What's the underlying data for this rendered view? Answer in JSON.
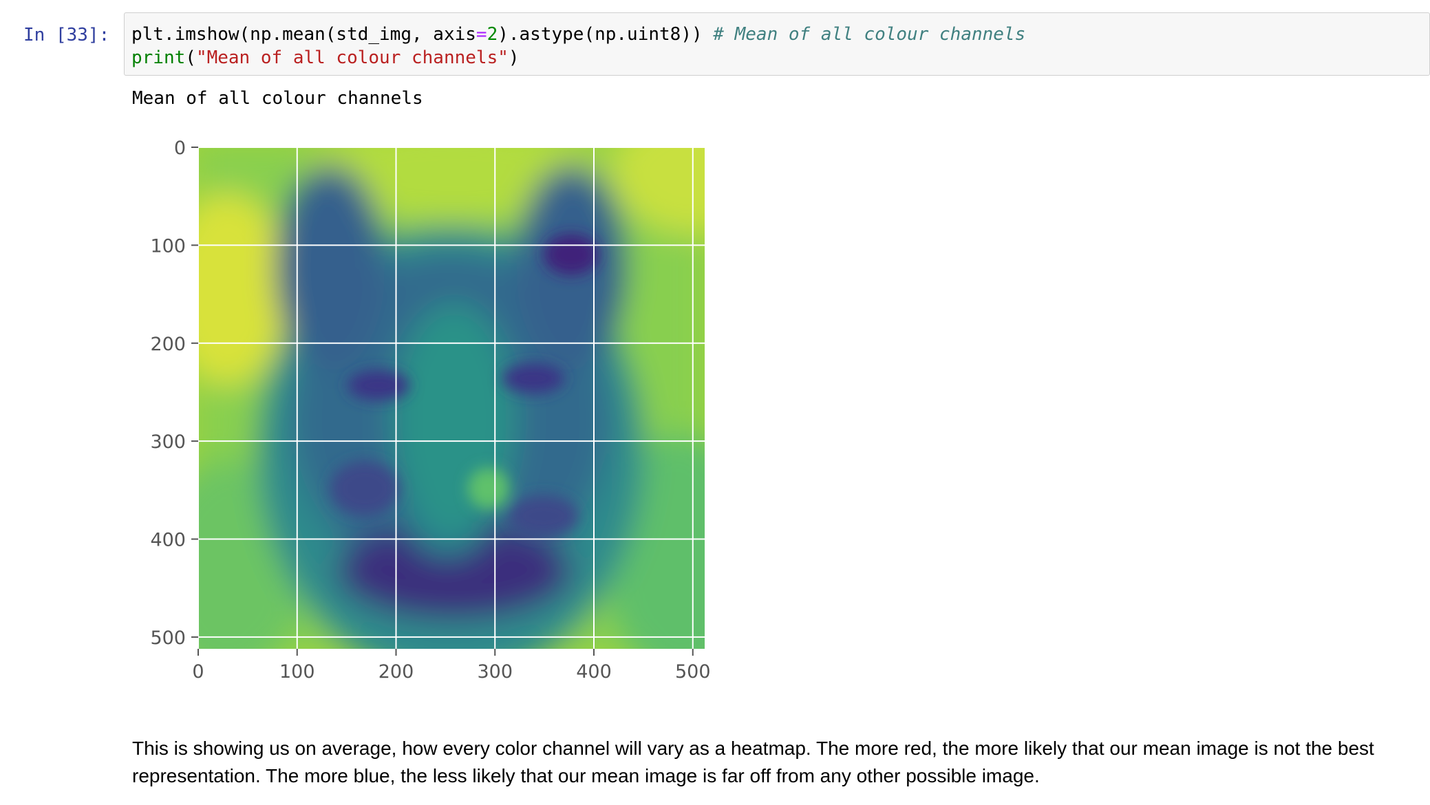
{
  "cell": {
    "prompt": "In [33]:",
    "code": {
      "line1": {
        "prefix": "plt.imshow(np.mean(std_img, axis",
        "equals": "=",
        "number": "2",
        "suffix": ").astype(np.uint8)) ",
        "comment": "# Mean of all colour channels"
      },
      "line2": {
        "builtin": "print",
        "open": "(",
        "string": "\"Mean of all colour channels\"",
        "close": ")"
      }
    },
    "stdout": "Mean of all colour channels"
  },
  "chart_data": {
    "type": "heatmap",
    "colormap": "viridis",
    "xlim": [
      0,
      512
    ],
    "ylim": [
      512,
      0
    ],
    "x_ticks": [
      0,
      100,
      200,
      300,
      400,
      500
    ],
    "y_ticks": [
      0,
      100,
      200,
      300,
      400,
      500
    ],
    "x_tick_labels": [
      "0",
      "100",
      "200",
      "300",
      "400",
      "500"
    ],
    "y_tick_labels": [
      "0",
      "100",
      "200",
      "300",
      "400",
      "500"
    ],
    "grid": true,
    "grid_color": "#ffffff",
    "image_description_note": "",
    "title": "",
    "xlabel": "",
    "ylabel": ""
  },
  "markdown": {
    "text": "This is showing us on average, how every color channel will vary as a heatmap. The more red, the more likely that our mean image is not the best representation. The more blue, the less likely that our mean image is far off from any other possible image."
  }
}
